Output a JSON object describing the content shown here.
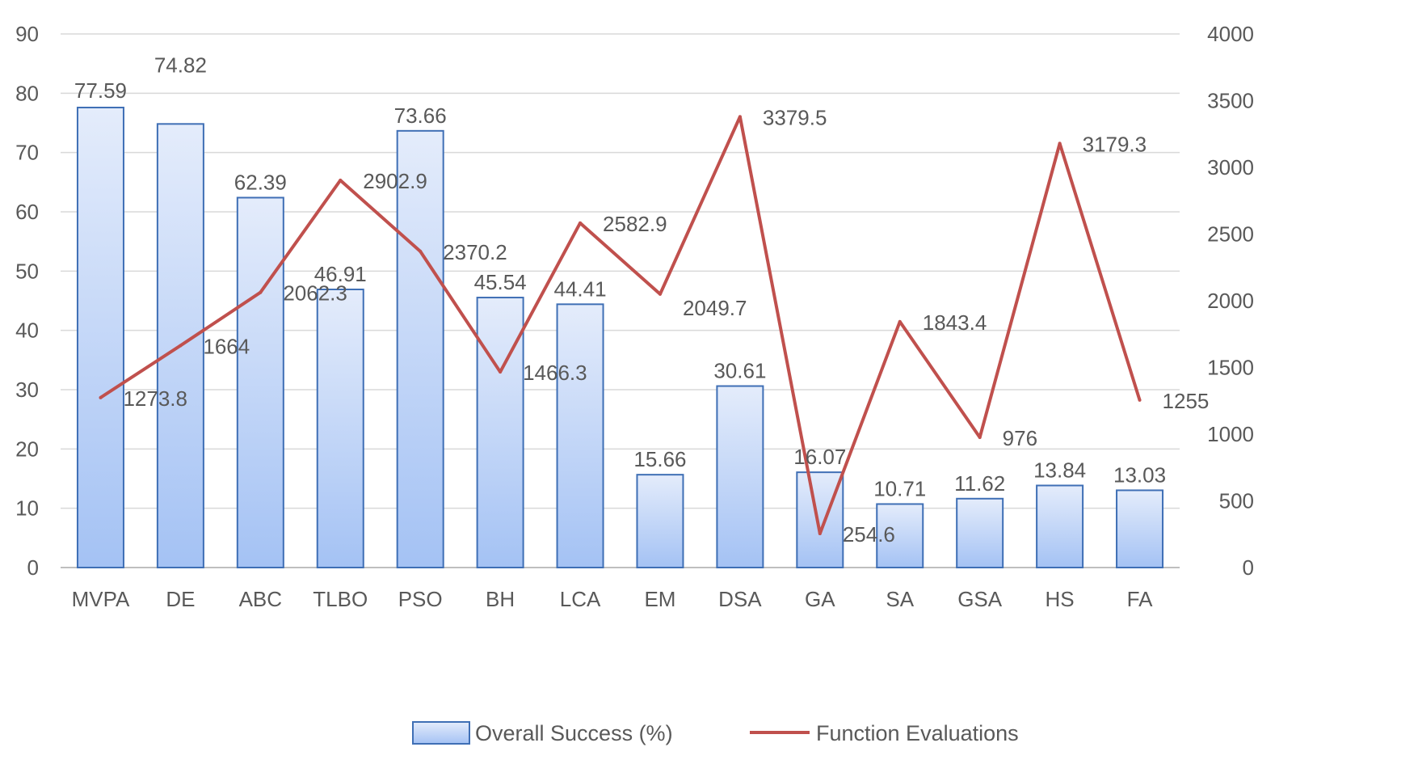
{
  "chart_data": {
    "type": "bar",
    "categories": [
      "MVPA",
      "DE",
      "ABC",
      "TLBO",
      "PSO",
      "BH",
      "LCA",
      "EM",
      "DSA",
      "GA",
      "SA",
      "GSA",
      "HS",
      "FA"
    ],
    "series": [
      {
        "name": "Overall Success (%)",
        "type": "bar",
        "axis": "left",
        "values": [
          77.59,
          74.82,
          62.39,
          46.91,
          73.66,
          45.54,
          44.41,
          15.66,
          30.61,
          16.07,
          10.71,
          11.62,
          13.84,
          13.03
        ],
        "labels": [
          "77.59",
          "74.82",
          "62.39",
          "46.91",
          "73.66",
          "45.54",
          "44.41",
          "15.66",
          "30.61",
          "16.07",
          "10.71",
          "11.62",
          "13.84",
          "13.03"
        ]
      },
      {
        "name": "Function Evaluations",
        "type": "line",
        "axis": "right",
        "values": [
          1273.8,
          1664,
          2062.3,
          2902.9,
          2370.2,
          1466.3,
          2582.9,
          2049.7,
          3379.5,
          254.6,
          1843.4,
          976,
          3179.3,
          1255
        ],
        "labels": [
          "1273.8",
          "1664",
          "2062.3",
          "2902.9",
          "2370.2",
          "1466.3",
          "2582.9",
          "2049.7",
          "3379.5",
          "254.6",
          "1843.4",
          "976",
          "3179.3",
          "1255"
        ]
      }
    ],
    "y_left": {
      "lim": [
        0,
        90
      ],
      "ticks": [
        "0",
        "10",
        "20",
        "30",
        "40",
        "50",
        "60",
        "70",
        "80",
        "90"
      ]
    },
    "y_right": {
      "lim": [
        0,
        4000
      ],
      "ticks": [
        "0",
        "500",
        "1000",
        "1500",
        "2000",
        "2500",
        "3000",
        "3500",
        "4000"
      ]
    },
    "title": "",
    "xlabel": "",
    "ylabel": "",
    "grid": true,
    "legend_position": "bottom",
    "colors": {
      "bar_top": "#e4ecfb",
      "bar_bottom": "#a4c2f4",
      "bar_stroke": "#3f6fb5",
      "line": "#c0504d",
      "grid": "#d9d9d9",
      "text": "#595959"
    }
  }
}
